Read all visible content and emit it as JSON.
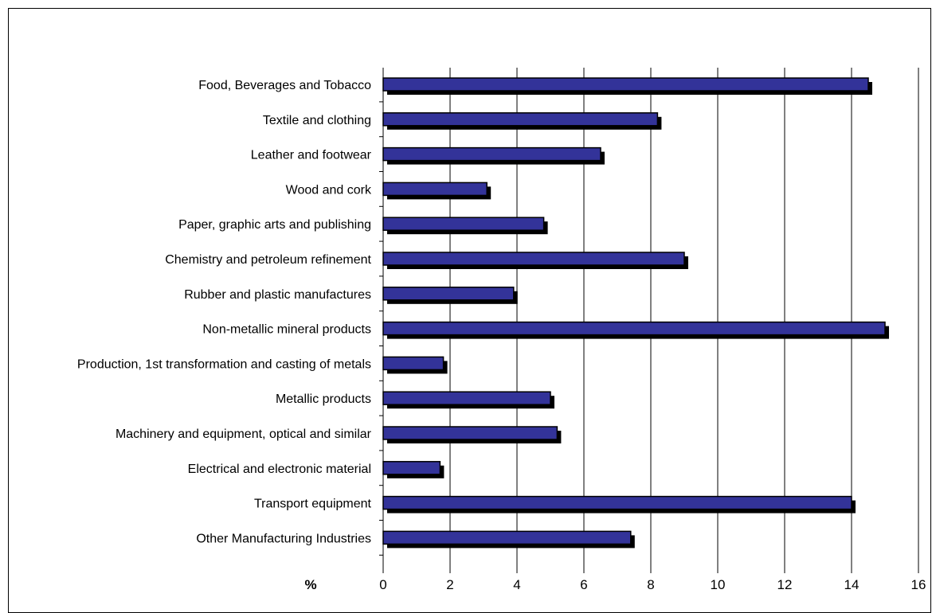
{
  "chart_data": {
    "type": "bar",
    "orientation": "horizontal",
    "categories": [
      "Food, Beverages and Tobacco",
      "Textile and clothing",
      "Leather and footwear",
      "Wood and cork",
      "Paper, graphic arts and publishing",
      "Chemistry and petroleum refinement",
      "Rubber and plastic manufactures",
      "Non-metallic mineral products",
      "Production, 1st transformation and casting of metals",
      "Metallic products",
      "Machinery and equipment, optical and similar",
      "Electrical and electronic material",
      "Transport equipment",
      "Other Manufacturing Industries"
    ],
    "values": [
      14.5,
      8.2,
      6.5,
      3.1,
      4.8,
      9.0,
      3.9,
      15.0,
      1.8,
      5.0,
      5.2,
      1.7,
      14.0,
      7.4
    ],
    "xlim": [
      0,
      16
    ],
    "xticks": [
      0,
      2,
      4,
      6,
      8,
      10,
      12,
      14,
      16
    ],
    "xlabel": "%",
    "title": "",
    "grid": "vertical",
    "colors": {
      "bar": "#333399",
      "shadow": "#000000",
      "grid": "#000000"
    }
  }
}
